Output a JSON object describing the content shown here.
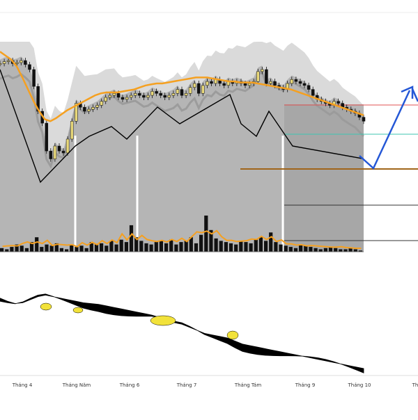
{
  "chart_data": {
    "type": "candlestick",
    "title": "",
    "x_tick_labels": [
      "Tháng 4",
      "Tháng Năm",
      "Tháng 6",
      "Tháng 7",
      "Tháng Tám",
      "Tháng 9",
      "Tháng 10",
      "Th"
    ],
    "colors": {
      "price_area": "#b5b5b5",
      "band": "#8c8c8c",
      "candle": "#111111",
      "candle_up": "#e8d87a",
      "moving_average": "#f5a020",
      "zigzag": "#000000",
      "projection": "#2457d6",
      "level_red": "#e05050",
      "level_teal": "#3cc6b0",
      "level_brown": "#a0651a",
      "volume": "#111111",
      "oscillator": "#000000",
      "oscillator_positive": "#f2e23a"
    },
    "price_series": [
      118,
      120,
      121,
      118,
      119,
      121,
      117,
      112,
      95,
      70,
      58,
      30,
      22,
      35,
      30,
      28,
      42,
      60,
      78,
      74,
      70,
      72,
      74,
      76,
      80,
      84,
      86,
      88,
      84,
      82,
      84,
      86,
      88,
      86,
      84,
      86,
      90,
      88,
      86,
      84,
      86,
      88,
      92,
      86,
      88,
      94,
      98,
      88,
      96,
      100,
      98,
      102,
      98,
      96,
      100,
      98,
      100,
      98,
      96,
      98,
      100,
      110,
      112,
      98,
      100,
      96,
      94,
      92,
      98,
      102,
      100,
      98,
      96,
      92,
      86,
      82,
      80,
      78,
      76,
      80,
      78,
      74,
      72,
      70,
      68,
      64,
      60
    ],
    "moving_average": [
      130,
      126,
      122,
      115,
      104,
      92,
      80,
      70,
      62,
      60,
      63,
      67,
      71,
      74,
      77,
      80,
      83,
      86,
      88,
      89,
      89,
      89,
      90,
      91,
      92,
      94,
      96,
      97,
      98,
      98,
      99,
      100,
      101,
      102,
      103,
      104,
      104,
      104,
      103,
      102,
      101,
      100,
      100,
      99,
      99,
      99,
      98,
      97,
      96,
      95,
      94,
      93,
      92,
      90,
      88,
      86,
      84,
      82,
      80,
      78,
      76,
      74,
      72,
      70,
      68,
      66
    ],
    "volume": [
      3,
      2,
      4,
      6,
      5,
      3,
      8,
      12,
      4,
      6,
      5,
      7,
      3,
      2,
      6,
      4,
      5,
      3,
      8,
      6,
      7,
      5,
      9,
      6,
      10,
      8,
      22,
      12,
      9,
      7,
      6,
      8,
      9,
      7,
      10,
      6,
      8,
      9,
      12,
      7,
      14,
      30,
      18,
      11,
      9,
      8,
      7,
      6,
      9,
      8,
      7,
      10,
      12,
      9,
      16,
      8,
      6,
      5,
      4,
      3,
      6,
      5,
      4,
      3,
      2,
      3,
      4,
      3,
      2,
      2,
      3,
      2,
      1
    ],
    "oscillator": [
      -8,
      -12,
      -15,
      -14,
      -10,
      -6,
      -4,
      -6,
      -8,
      -10,
      -12,
      -14,
      -15,
      -16,
      -18,
      -20,
      -22,
      -24,
      -26,
      -28,
      -30,
      -33,
      -36,
      -40,
      -42,
      -46,
      -50,
      -54,
      -56,
      -58,
      -60,
      -64,
      -68,
      -70,
      -72,
      -74,
      -76,
      -78,
      -80,
      -82,
      -84,
      -86,
      -88,
      -90,
      -92,
      -94,
      -96,
      -98,
      -100
    ]
  }
}
